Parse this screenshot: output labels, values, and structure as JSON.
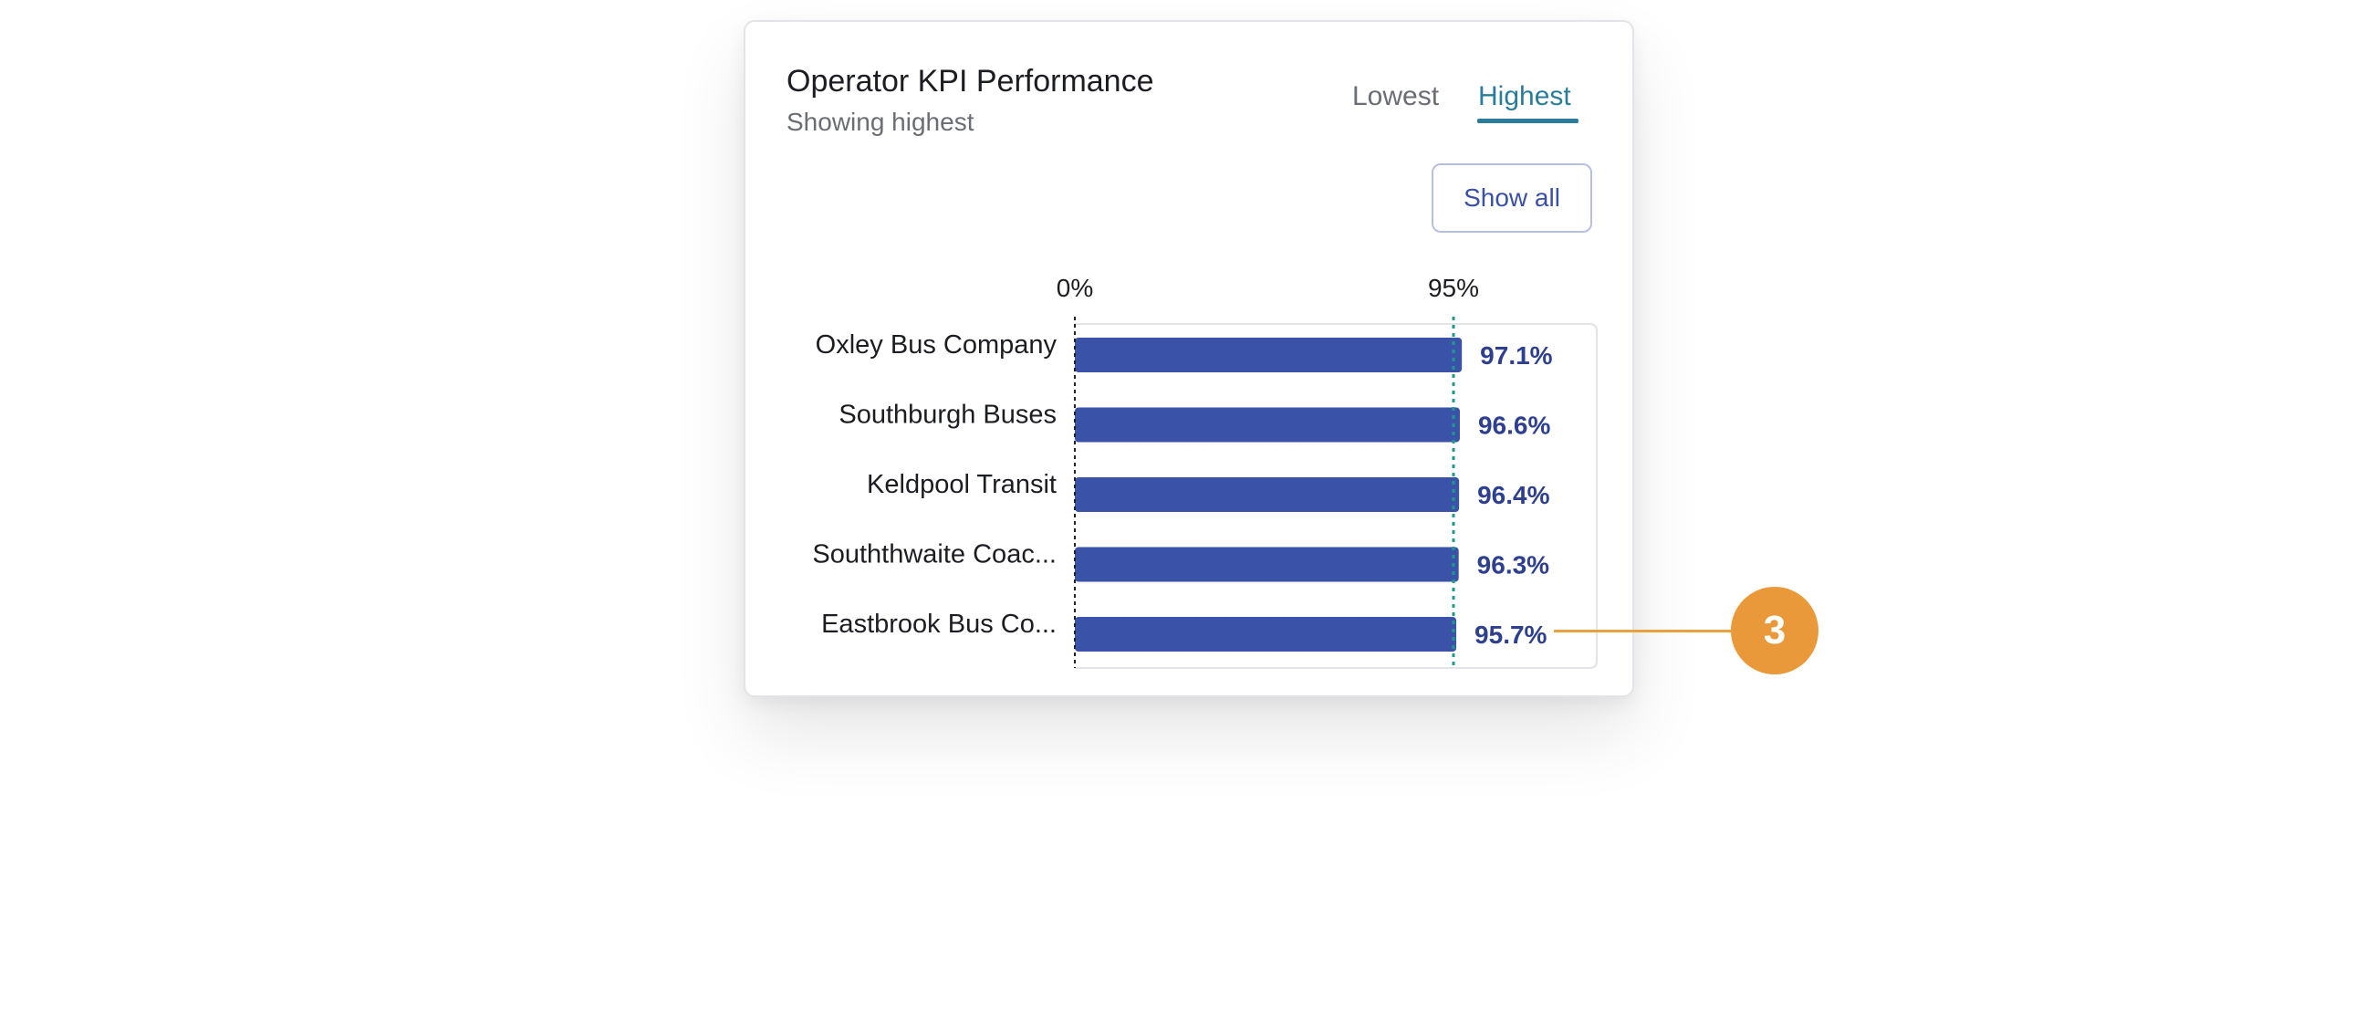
{
  "card": {
    "title": "Operator KPI Performance",
    "subtitle": "Showing highest",
    "tabs": [
      {
        "label": "Lowest",
        "active": false
      },
      {
        "label": "Highest",
        "active": true
      }
    ],
    "show_all_label": "Show all"
  },
  "chart_data": {
    "type": "bar",
    "orientation": "horizontal",
    "categories": [
      "Oxley Bus Company",
      "Southburgh Buses",
      "Keldpool Transit",
      "Souththwaite Coac...",
      "Eastbrook Bus Co..."
    ],
    "values": [
      97.1,
      96.6,
      96.4,
      96.3,
      95.7
    ],
    "value_labels": [
      "97.1%",
      "96.6%",
      "96.4%",
      "96.3%",
      "95.7%"
    ],
    "axis_ticks": [
      {
        "value": 0,
        "label": "0%"
      },
      {
        "value": 95,
        "label": "95%"
      }
    ],
    "target": 95,
    "xlim": [
      0,
      100
    ],
    "colors": {
      "bar": "#3a52a8",
      "value_label": "#2d3f8e",
      "target_line": "#1f9a8a",
      "zero_line": "#222222"
    }
  },
  "callout": {
    "number": "3",
    "color": "#e9993a"
  }
}
